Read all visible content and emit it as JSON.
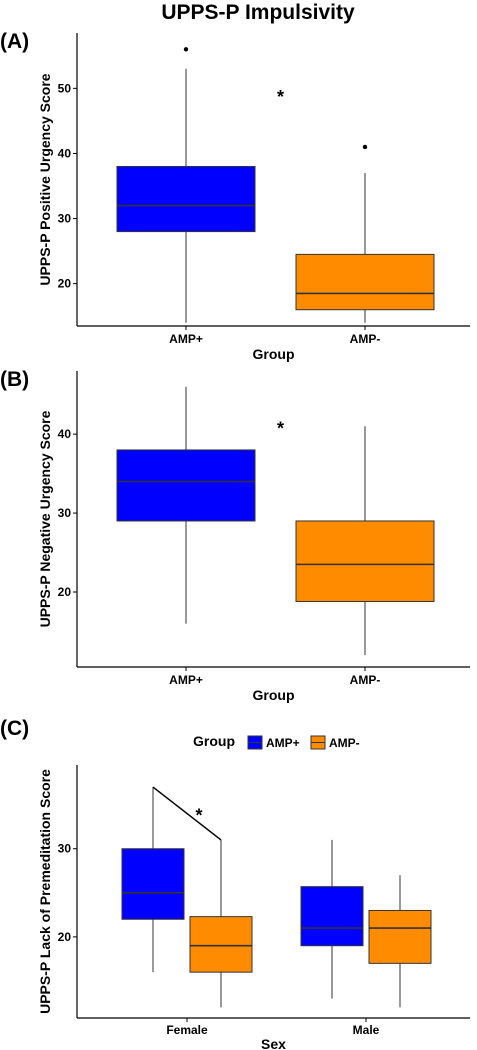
{
  "page": {
    "title": "UPPS-P Impulsivity"
  },
  "colors": {
    "AMP+": "#0000FF",
    "AMP-": "#FF8C00",
    "axis": "#000000",
    "line": "#333333"
  },
  "chart_data": [
    {
      "type": "box",
      "panel_label": "(A)",
      "xlabel": "Group",
      "ylabel": "UPPS-P Positive Urgency Score",
      "ylim": [
        13.5,
        58.5
      ],
      "yticks": [
        20,
        30,
        40,
        50
      ],
      "categories": [
        "AMP+",
        "AMP-"
      ],
      "boxes": [
        {
          "category": "AMP+",
          "group": "AMP+",
          "min": 14,
          "q1": 28,
          "median": 32,
          "q3": 38,
          "max": 53,
          "outliers": [
            56
          ]
        },
        {
          "category": "AMP-",
          "group": "AMP-",
          "min": 14,
          "q1": 16,
          "median": 18.5,
          "q3": 24.5,
          "max": 37,
          "outliers": [
            41
          ]
        }
      ],
      "annotations": [
        {
          "text": "*",
          "category_pos": 1.5,
          "y": 49
        }
      ]
    },
    {
      "type": "box",
      "panel_label": "(B)",
      "xlabel": "Group",
      "ylabel": "UPPS-P Negative Urgency Score",
      "ylim": [
        10.5,
        48
      ],
      "yticks": [
        20,
        30,
        40
      ],
      "categories": [
        "AMP+",
        "AMP-"
      ],
      "boxes": [
        {
          "category": "AMP+",
          "group": "AMP+",
          "min": 16,
          "q1": 29,
          "median": 34,
          "q3": 38,
          "max": 46,
          "outliers": []
        },
        {
          "category": "AMP-",
          "group": "AMP-",
          "min": 12,
          "q1": 18.8,
          "median": 23.5,
          "q3": 29,
          "max": 41,
          "outliers": []
        }
      ],
      "annotations": [
        {
          "text": "*",
          "category_pos": 1.5,
          "y": 41
        }
      ]
    },
    {
      "type": "box",
      "panel_label": "(C)",
      "xlabel": "Sex",
      "ylabel": "UPPS-P Lack of Premeditation Score",
      "ylim": [
        10.8,
        39.5
      ],
      "yticks": [
        20,
        30
      ],
      "categories": [
        "Female",
        "Male"
      ],
      "legend": {
        "title": "Group",
        "position": "top",
        "entries": [
          "AMP+",
          "AMP-"
        ]
      },
      "boxes": [
        {
          "category": "Female",
          "group": "AMP+",
          "min": 16,
          "q1": 22,
          "median": 25,
          "q3": 30,
          "max": 37,
          "outliers": []
        },
        {
          "category": "Female",
          "group": "AMP-",
          "min": 12,
          "q1": 16,
          "median": 19,
          "q3": 22.3,
          "max": 31,
          "outliers": []
        },
        {
          "category": "Male",
          "group": "AMP+",
          "min": 13,
          "q1": 19,
          "median": 21,
          "q3": 25.7,
          "max": 31,
          "outliers": []
        },
        {
          "category": "Male",
          "group": "AMP-",
          "min": 12,
          "q1": 17,
          "median": 21,
          "q3": 23,
          "max": 27,
          "outliers": []
        }
      ],
      "annotations": [
        {
          "text": "*",
          "category_pos": 1,
          "y": 34
        }
      ]
    }
  ]
}
